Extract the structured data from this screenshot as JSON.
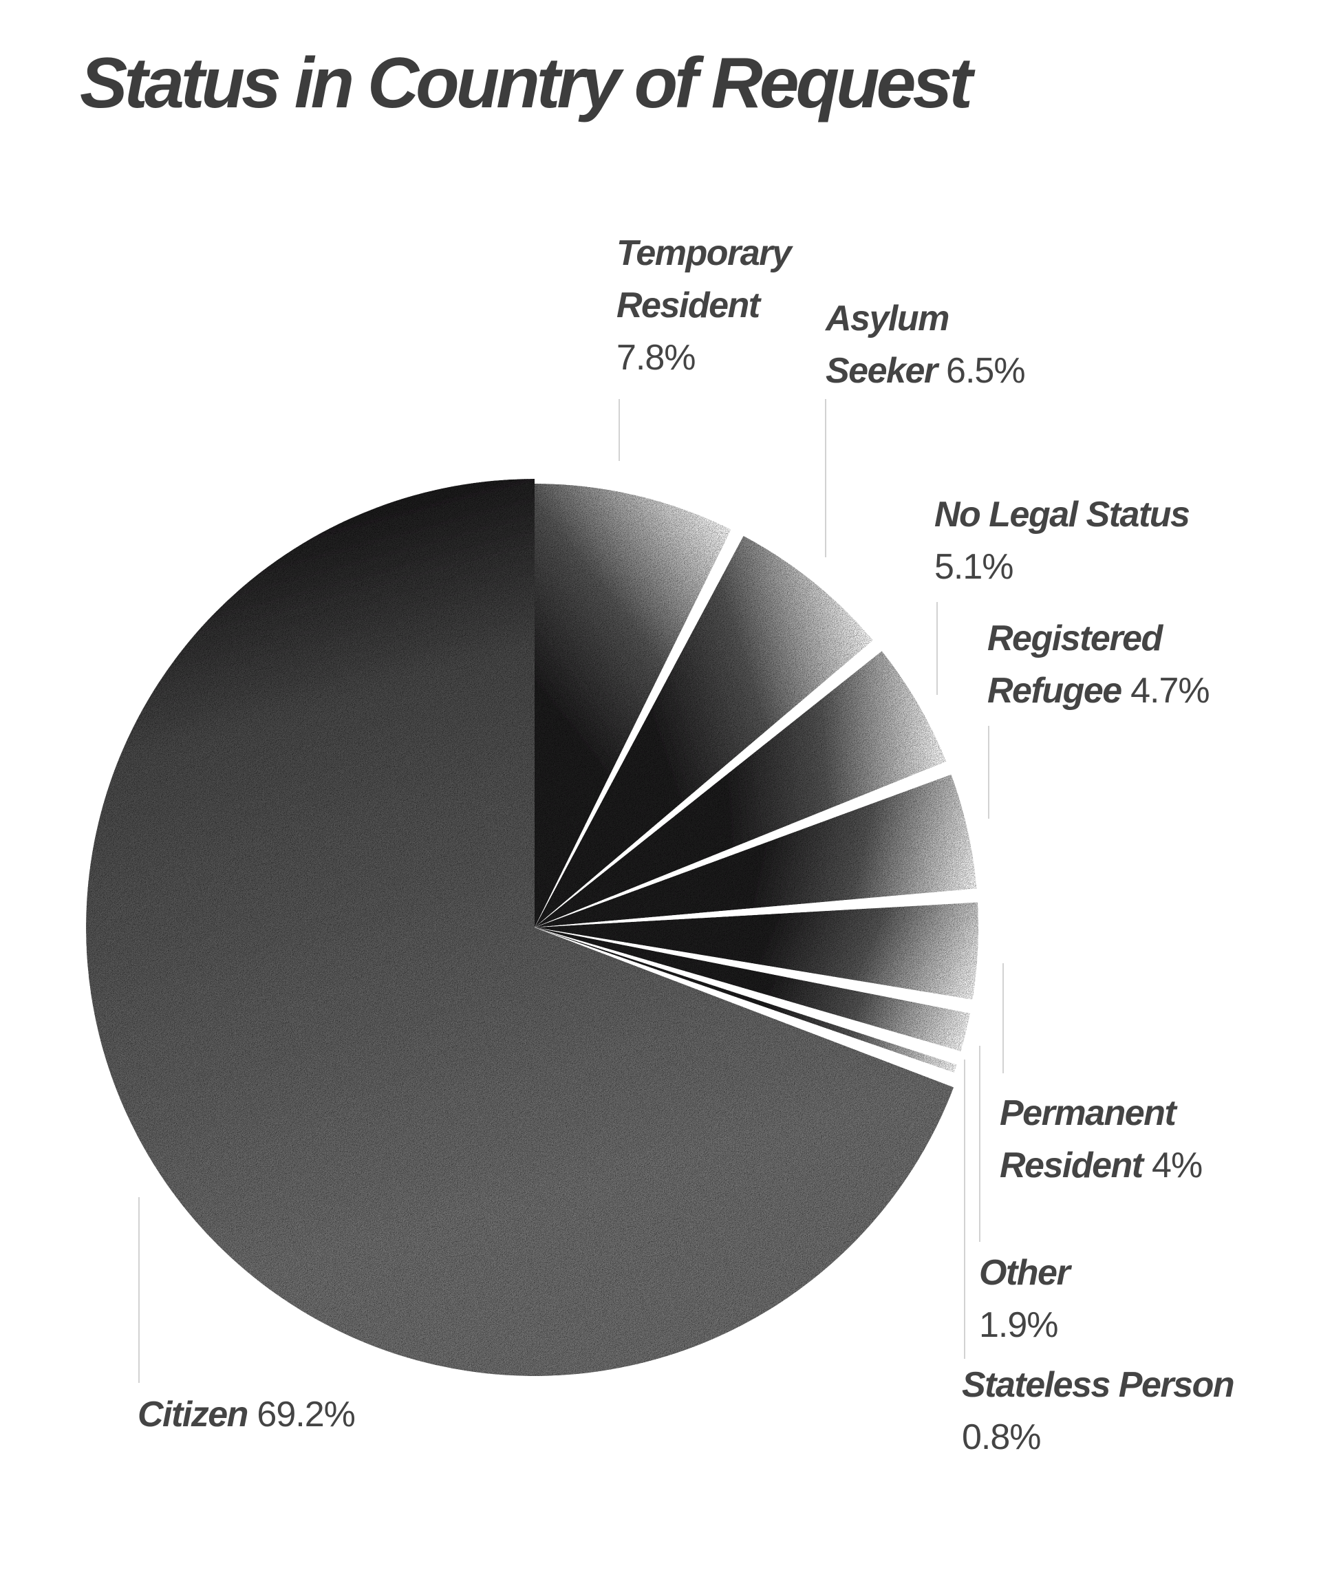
{
  "colors": {
    "background": "#ffffff",
    "text": "#444444",
    "slice_dark": "#1e1d1e",
    "slice_light": "#ffffff",
    "citizen_fill": "#6f6f6f",
    "leader_line": "#c4c4c4"
  },
  "chart_data": {
    "type": "pie",
    "title": "Status in Country of Request",
    "style": "exploded radial gradient slices with noise texture, starting at 12 o'clock clockwise",
    "slices": [
      {
        "key": "temporary-resident",
        "name": "Temporary Resident",
        "name_lines": [
          "Temporary",
          "Resident"
        ],
        "value": 7.8,
        "value_label": "7.8%"
      },
      {
        "key": "asylum-seeker",
        "name": "Asylum Seeker",
        "name_lines": [
          "Asylum",
          "Seeker"
        ],
        "value": 6.5,
        "value_label": "6.5%"
      },
      {
        "key": "no-legal-status",
        "name": "No Legal Status",
        "name_lines": [
          "No Legal Status"
        ],
        "value": 5.1,
        "value_label": "5.1%"
      },
      {
        "key": "registered-refugee",
        "name": "Registered Refugee",
        "name_lines": [
          "Registered",
          "Refugee"
        ],
        "value": 4.7,
        "value_label": "4.7%"
      },
      {
        "key": "permanent-resident",
        "name": "Permanent Resident",
        "name_lines": [
          "Permanent",
          "Resident"
        ],
        "value": 4.0,
        "value_label": "4%"
      },
      {
        "key": "other",
        "name": "Other",
        "name_lines": [
          "Other"
        ],
        "value": 1.9,
        "value_label": "1.9%"
      },
      {
        "key": "stateless-person",
        "name": "Stateless Person",
        "name_lines": [
          "Stateless Person"
        ],
        "value": 0.8,
        "value_label": "0.8%"
      },
      {
        "key": "citizen",
        "name": "Citizen",
        "name_lines": [
          "Citizen"
        ],
        "value": 69.2,
        "value_label": "69.2%"
      }
    ]
  }
}
